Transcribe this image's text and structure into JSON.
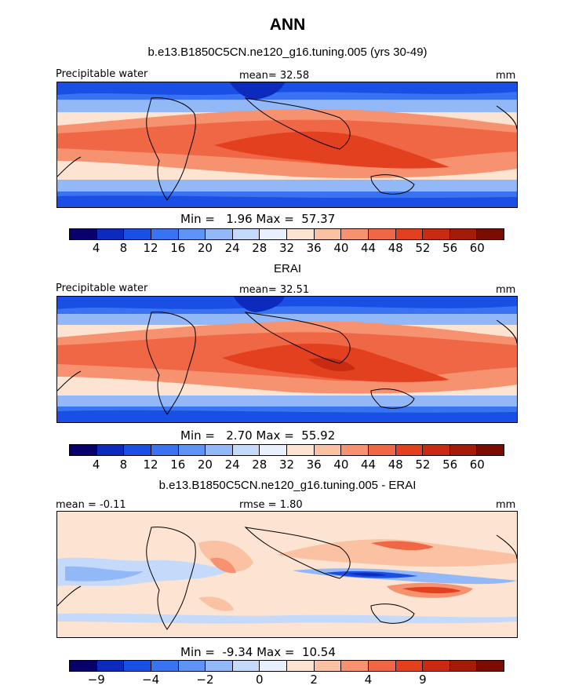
{
  "title": "ANN",
  "panels": [
    {
      "title": "b.e13.B1850C5CN.ne120_g16.tuning.005 (yrs 30-49)",
      "left_label": "Precipitable water",
      "center_label": "mean=  32.58",
      "units": "mm",
      "min_max": "Min =   1.96 Max =  57.37",
      "colorbar": {
        "colors": [
          "#08006b",
          "#0c2bbd",
          "#1a4fe6",
          "#3a73f2",
          "#5f93f5",
          "#93b8f8",
          "#c5dafb",
          "#e9f0fd",
          "#fde3d2",
          "#fbc1a3",
          "#f6926f",
          "#ef6744",
          "#e3401f",
          "#c92a12",
          "#a31c0a",
          "#7a0c02"
        ],
        "tick_labels": [
          "4",
          "8",
          "12",
          "16",
          "20",
          "24",
          "28",
          "32",
          "36",
          "40",
          "44",
          "48",
          "52",
          "56",
          "60"
        ]
      }
    },
    {
      "title": "ERAI",
      "left_label": "Precipitable water",
      "center_label": "mean=  32.51",
      "units": "mm",
      "min_max": "Min =   2.70 Max =  55.92",
      "colorbar": {
        "colors": [
          "#08006b",
          "#0c2bbd",
          "#1a4fe6",
          "#3a73f2",
          "#5f93f5",
          "#93b8f8",
          "#c5dafb",
          "#e9f0fd",
          "#fde3d2",
          "#fbc1a3",
          "#f6926f",
          "#ef6744",
          "#e3401f",
          "#c92a12",
          "#a31c0a",
          "#7a0c02"
        ],
        "tick_labels": [
          "4",
          "8",
          "12",
          "16",
          "20",
          "24",
          "28",
          "32",
          "36",
          "40",
          "44",
          "48",
          "52",
          "56",
          "60"
        ]
      }
    },
    {
      "title": "b.e13.B1850C5CN.ne120_g16.tuning.005 - ERAI",
      "left_label": "mean = -0.11",
      "center_label": "rmse =  1.80",
      "units": "mm",
      "min_max": "Min =  -9.34 Max =  10.54",
      "colorbar": {
        "colors": [
          "#08006b",
          "#0c2bbd",
          "#1a4fe6",
          "#3a73f2",
          "#5f93f5",
          "#93b8f8",
          "#c5dafb",
          "#e9f0fd",
          "#fde3d2",
          "#fbc1a3",
          "#f6926f",
          "#ef6744",
          "#e3401f",
          "#c92a12",
          "#a31c0a",
          "#7a0c02"
        ],
        "tick_labels": [
          "-9",
          "",
          "-4",
          "",
          "-2",
          "",
          "0",
          "",
          "2",
          "",
          "4",
          "",
          "9",
          "",
          ""
        ]
      }
    }
  ]
}
